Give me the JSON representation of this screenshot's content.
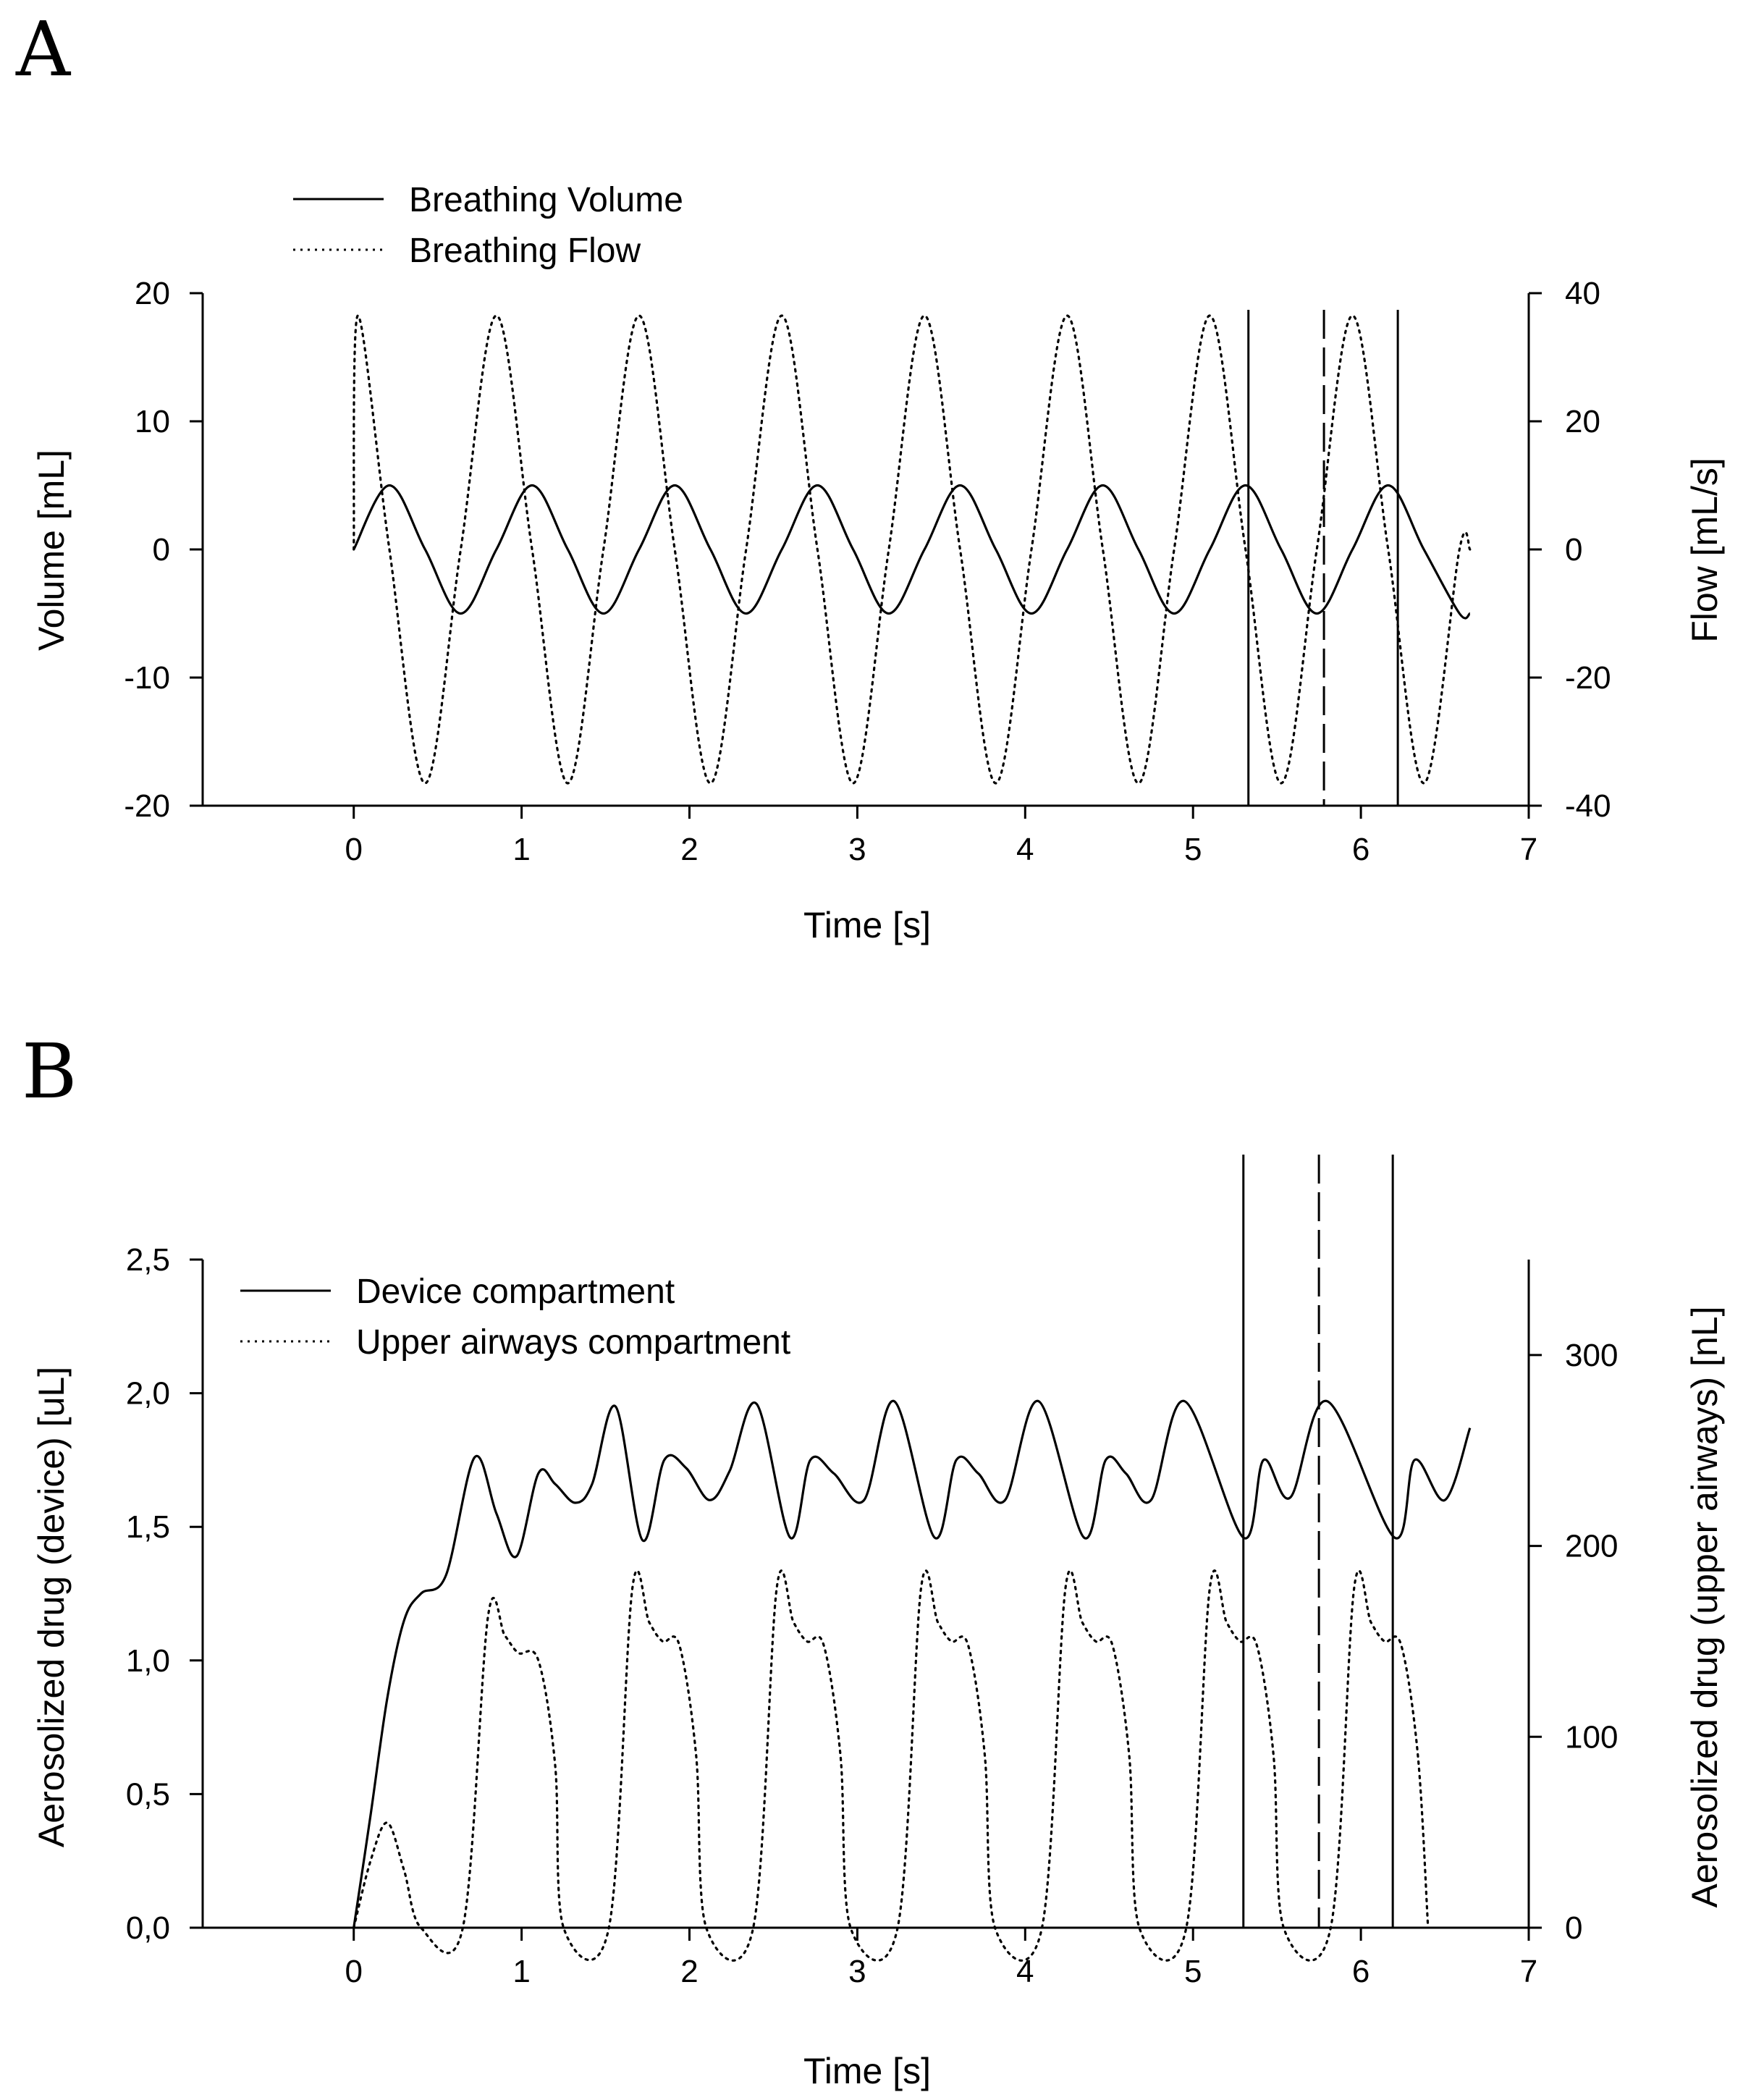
{
  "chart_data": [
    {
      "panel": "A",
      "type": "line",
      "xlabel": "Time [s]",
      "ylabel": "Volume [mL]",
      "ylabel_right": "Flow [mL/s]",
      "xlim": [
        -0.9,
        7
      ],
      "ylim": [
        -20,
        20
      ],
      "ylim_right": [
        -40,
        40
      ],
      "x_ticks": [
        0,
        1,
        2,
        3,
        4,
        5,
        6,
        7
      ],
      "y_ticks": [
        -20,
        -10,
        0,
        10,
        20
      ],
      "y_ticks_right": [
        -40,
        -20,
        0,
        20,
        40
      ],
      "x_tick_labels": [
        "0",
        "1",
        "2",
        "3",
        "4",
        "5",
        "6",
        "7"
      ],
      "y_tick_labels": [
        "-20",
        "-10",
        "0",
        "10",
        "20"
      ],
      "y_tick_labels_right": [
        "-40",
        "-20",
        "0",
        "20",
        "40"
      ],
      "legend": [
        "Breathing Volume",
        "Breathing Flow"
      ],
      "series": [
        {
          "name": "Breathing Volume",
          "axis": "left",
          "style": "solid",
          "x": [
            0,
            0.2125,
            0.425,
            0.6375,
            0.85,
            1.0625,
            1.275,
            1.4875,
            1.7,
            1.9125,
            2.125,
            2.3375,
            2.55,
            2.7625,
            2.975,
            3.1875,
            3.4,
            3.6125,
            3.825,
            4.0375,
            4.25,
            4.4625,
            4.675,
            4.8875,
            5.1,
            5.3125,
            5.525,
            5.7375,
            5.95,
            6.1625,
            6.375,
            6.5875,
            6.65
          ],
          "values": [
            0,
            5,
            0,
            -5,
            0,
            5,
            0,
            -5,
            0,
            5,
            0,
            -5,
            0,
            5,
            0,
            -5,
            0,
            5,
            0,
            -5,
            0,
            5,
            0,
            -5,
            0,
            5,
            0,
            -5,
            0,
            5,
            0,
            -5,
            -5
          ]
        },
        {
          "name": "Breathing Flow",
          "axis": "right",
          "style": "dotted",
          "x": [
            0,
            0.025,
            0.2125,
            0.425,
            0.6375,
            0.85,
            1.0625,
            1.275,
            1.4875,
            1.7,
            1.9125,
            2.125,
            2.3375,
            2.55,
            2.7625,
            2.975,
            3.1875,
            3.4,
            3.6125,
            3.825,
            4.0375,
            4.25,
            4.4625,
            4.675,
            4.8875,
            5.1,
            5.3125,
            5.525,
            5.7375,
            5.95,
            6.1625,
            6.375,
            6.5875,
            6.65
          ],
          "values": [
            0,
            36.5,
            0,
            -36.5,
            0,
            36.5,
            0,
            -36.5,
            0,
            36.5,
            0,
            -36.5,
            0,
            36.5,
            0,
            -36.5,
            0,
            36.5,
            0,
            -36.5,
            0,
            36.5,
            0,
            -36.5,
            0,
            36.5,
            0,
            -36.5,
            0,
            36.5,
            0,
            -36.5,
            0,
            0
          ]
        }
      ],
      "vertical_lines": [
        {
          "x": 5.33,
          "style": "solid"
        },
        {
          "x": 5.78,
          "style": "dashed"
        },
        {
          "x": 6.22,
          "style": "solid"
        }
      ]
    },
    {
      "panel": "B",
      "type": "line",
      "xlabel": "Time [s]",
      "ylabel": "Aerosolized drug (device) [uL]",
      "ylabel_right": "Aerosolized drug (upper airways) [nL]",
      "xlim": [
        -0.9,
        7
      ],
      "ylim": [
        0,
        2.5
      ],
      "ylim_right": [
        0,
        350
      ],
      "x_ticks": [
        0,
        1,
        2,
        3,
        4,
        5,
        6,
        7
      ],
      "y_ticks": [
        0,
        0.5,
        1.0,
        1.5,
        2.0,
        2.5
      ],
      "y_ticks_right": [
        0,
        100,
        200,
        300
      ],
      "x_tick_labels": [
        "0",
        "1",
        "2",
        "3",
        "4",
        "5",
        "6",
        "7"
      ],
      "y_tick_labels": [
        "0,0",
        "0,5",
        "1,0",
        "1,5",
        "2,0",
        "2,5"
      ],
      "y_tick_labels_right": [
        "0",
        "100",
        "200",
        "300"
      ],
      "legend": [
        "Device compartment",
        "Upper airways compartment"
      ],
      "series": [
        {
          "name": "Device compartment",
          "axis": "left",
          "style": "solid",
          "x": [
            0,
            0.1,
            0.2,
            0.3,
            0.4,
            0.55,
            0.72,
            0.85,
            0.97,
            1.1,
            1.2,
            1.32,
            1.42,
            1.56,
            1.72,
            1.85,
            1.98,
            2.12,
            2.24,
            2.4,
            2.6,
            2.72,
            2.86,
            3.04,
            3.22,
            3.46,
            3.59,
            3.72,
            3.88,
            4.08,
            4.35,
            4.48,
            4.6,
            4.75,
            4.95,
            5.3,
            5.42,
            5.58,
            5.8,
            6.2,
            6.32,
            6.5,
            6.65
          ],
          "values": [
            0,
            0.42,
            0.86,
            1.15,
            1.25,
            1.32,
            1.76,
            1.55,
            1.39,
            1.7,
            1.66,
            1.59,
            1.66,
            1.95,
            1.45,
            1.75,
            1.72,
            1.6,
            1.71,
            1.96,
            1.46,
            1.75,
            1.7,
            1.6,
            1.97,
            1.46,
            1.75,
            1.7,
            1.6,
            1.97,
            1.46,
            1.75,
            1.7,
            1.6,
            1.97,
            1.46,
            1.75,
            1.61,
            1.97,
            1.46,
            1.75,
            1.6,
            1.87
          ]
        },
        {
          "name": "Upper airways compartment",
          "axis": "right",
          "style": "dotted",
          "x": [
            0,
            0.1,
            0.2,
            0.3,
            0.4,
            0.65,
            0.8,
            0.9,
            0.98,
            1.1,
            1.2,
            1.25,
            1.52,
            1.66,
            1.76,
            1.84,
            1.94,
            2.04,
            2.1,
            2.38,
            2.52,
            2.62,
            2.7,
            2.8,
            2.9,
            2.96,
            3.24,
            3.38,
            3.48,
            3.56,
            3.66,
            3.76,
            3.82,
            4.1,
            4.24,
            4.34,
            4.42,
            4.52,
            4.62,
            4.68,
            4.96,
            5.1,
            5.2,
            5.28,
            5.38,
            5.48,
            5.54,
            5.82,
            5.96,
            6.06,
            6.14,
            6.24,
            6.34,
            6.4
          ],
          "values": [
            0,
            35,
            55,
            30,
            0,
            0,
            163,
            153,
            144,
            140,
            85,
            0,
            0,
            178,
            160,
            150,
            148,
            90,
            0,
            0,
            178,
            160,
            150,
            148,
            90,
            0,
            0,
            178,
            160,
            150,
            148,
            90,
            0,
            0,
            178,
            160,
            150,
            148,
            90,
            0,
            0,
            178,
            160,
            150,
            148,
            90,
            0,
            0,
            178,
            160,
            150,
            148,
            90,
            0
          ]
        }
      ],
      "vertical_lines": [
        {
          "x": 5.3,
          "style": "solid"
        },
        {
          "x": 5.75,
          "style": "dashed"
        },
        {
          "x": 6.19,
          "style": "solid"
        }
      ]
    }
  ]
}
